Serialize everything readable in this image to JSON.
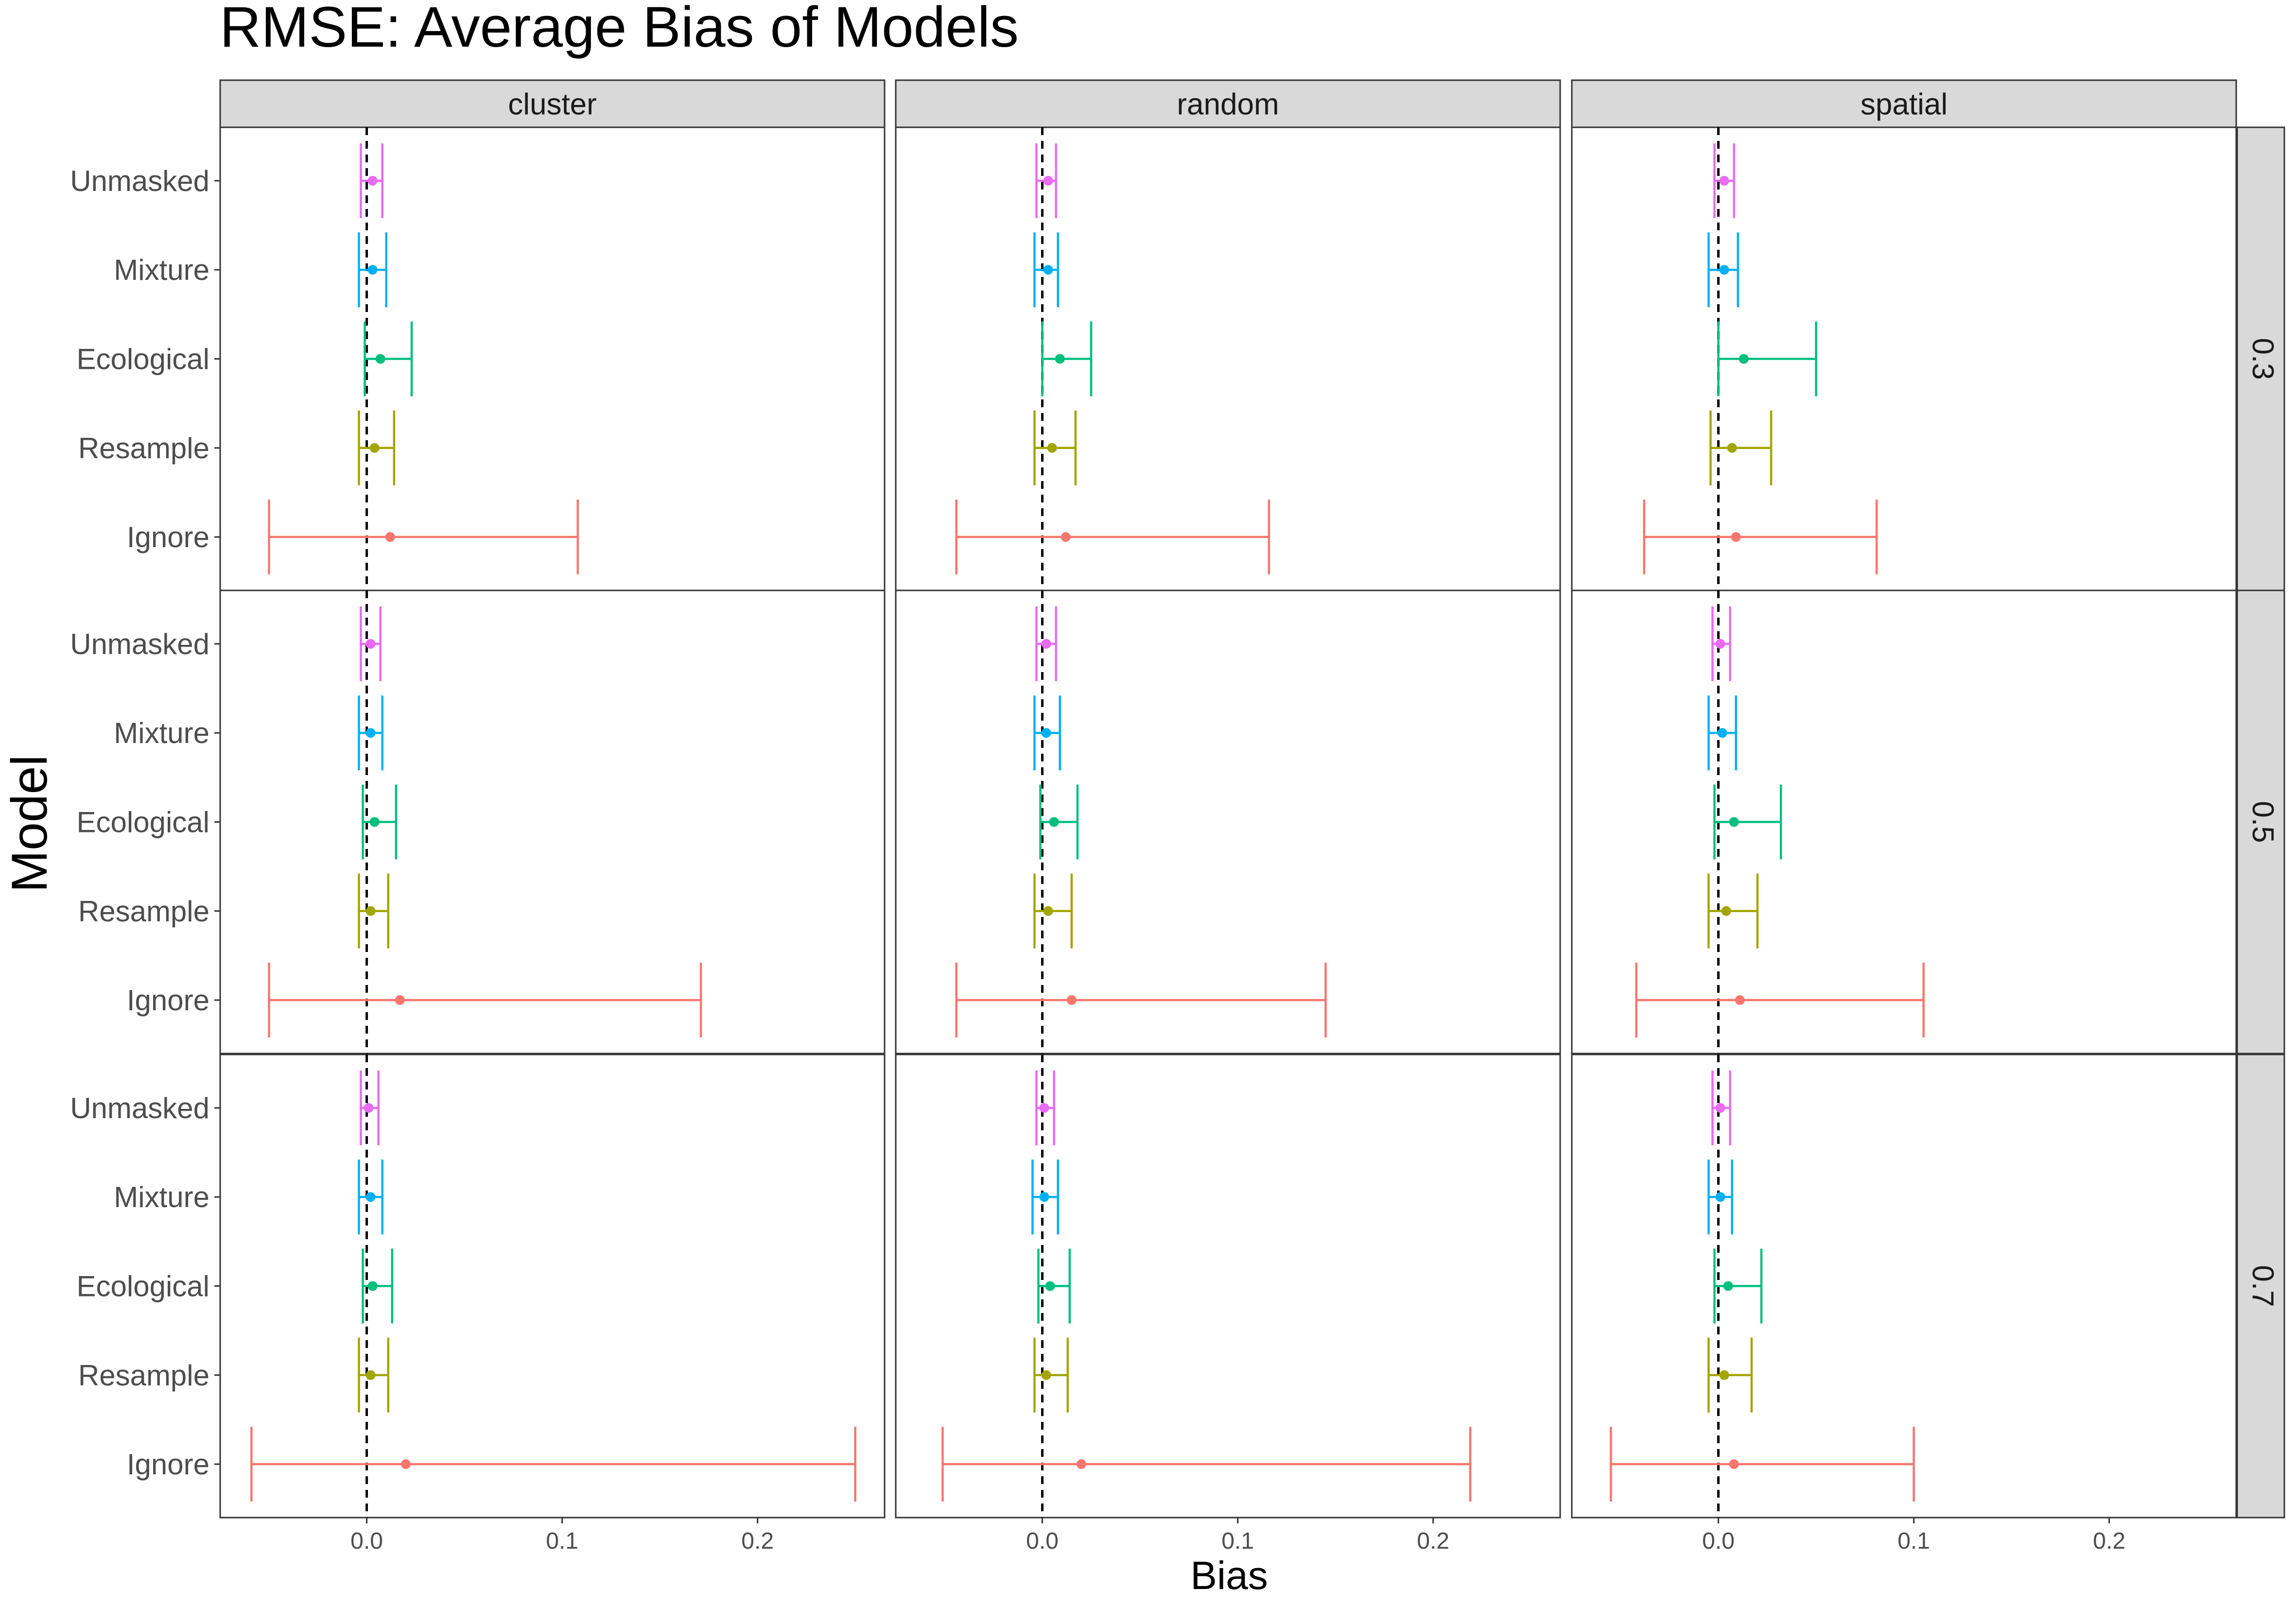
{
  "chart_data": {
    "type": "errorbar",
    "title": "RMSE: Average Bias of Models",
    "xlabel": "Bias",
    "ylabel": "Model",
    "xlim": [
      -0.075,
      0.265
    ],
    "x_ticks": [
      {
        "value": 0.0,
        "label": "0.0"
      },
      {
        "value": 0.1,
        "label": "0.1"
      },
      {
        "value": 0.2,
        "label": "0.2"
      }
    ],
    "reference_line": 0.0,
    "models": [
      "Unmasked",
      "Mixture",
      "Ecological",
      "Resample",
      "Ignore"
    ],
    "model_colors": {
      "Unmasked": "#E76BF3",
      "Mixture": "#00B0F6",
      "Ecological": "#00BF7D",
      "Resample": "#A3A500",
      "Ignore": "#F8766D"
    },
    "col_facets": [
      "cluster",
      "random",
      "spatial"
    ],
    "row_facets": [
      "0.3",
      "0.5",
      "0.7"
    ],
    "panels": [
      {
        "col": "cluster",
        "row": "0.3",
        "points": {
          "Unmasked": {
            "mean": 0.003,
            "low": -0.003,
            "high": 0.008
          },
          "Mixture": {
            "mean": 0.003,
            "low": -0.004,
            "high": 0.01
          },
          "Ecological": {
            "mean": 0.007,
            "low": -0.001,
            "high": 0.023
          },
          "Resample": {
            "mean": 0.004,
            "low": -0.004,
            "high": 0.014
          },
          "Ignore": {
            "mean": 0.012,
            "low": -0.05,
            "high": 0.108
          }
        }
      },
      {
        "col": "random",
        "row": "0.3",
        "points": {
          "Unmasked": {
            "mean": 0.003,
            "low": -0.003,
            "high": 0.007
          },
          "Mixture": {
            "mean": 0.003,
            "low": -0.004,
            "high": 0.008
          },
          "Ecological": {
            "mean": 0.009,
            "low": 0.0,
            "high": 0.025
          },
          "Resample": {
            "mean": 0.005,
            "low": -0.004,
            "high": 0.017
          },
          "Ignore": {
            "mean": 0.012,
            "low": -0.044,
            "high": 0.116
          }
        }
      },
      {
        "col": "spatial",
        "row": "0.3",
        "points": {
          "Unmasked": {
            "mean": 0.003,
            "low": -0.002,
            "high": 0.008
          },
          "Mixture": {
            "mean": 0.003,
            "low": -0.005,
            "high": 0.01
          },
          "Ecological": {
            "mean": 0.013,
            "low": 0.0,
            "high": 0.05
          },
          "Resample": {
            "mean": 0.007,
            "low": -0.004,
            "high": 0.027
          },
          "Ignore": {
            "mean": 0.009,
            "low": -0.038,
            "high": 0.081
          }
        }
      },
      {
        "col": "cluster",
        "row": "0.5",
        "points": {
          "Unmasked": {
            "mean": 0.002,
            "low": -0.003,
            "high": 0.007
          },
          "Mixture": {
            "mean": 0.002,
            "low": -0.004,
            "high": 0.008
          },
          "Ecological": {
            "mean": 0.004,
            "low": -0.002,
            "high": 0.015
          },
          "Resample": {
            "mean": 0.002,
            "low": -0.004,
            "high": 0.011
          },
          "Ignore": {
            "mean": 0.017,
            "low": -0.05,
            "high": 0.171
          }
        }
      },
      {
        "col": "random",
        "row": "0.5",
        "points": {
          "Unmasked": {
            "mean": 0.002,
            "low": -0.003,
            "high": 0.007
          },
          "Mixture": {
            "mean": 0.002,
            "low": -0.004,
            "high": 0.009
          },
          "Ecological": {
            "mean": 0.006,
            "low": -0.001,
            "high": 0.018
          },
          "Resample": {
            "mean": 0.003,
            "low": -0.004,
            "high": 0.015
          },
          "Ignore": {
            "mean": 0.015,
            "low": -0.044,
            "high": 0.145
          }
        }
      },
      {
        "col": "spatial",
        "row": "0.5",
        "points": {
          "Unmasked": {
            "mean": 0.001,
            "low": -0.003,
            "high": 0.006
          },
          "Mixture": {
            "mean": 0.002,
            "low": -0.005,
            "high": 0.009
          },
          "Ecological": {
            "mean": 0.008,
            "low": -0.002,
            "high": 0.032
          },
          "Resample": {
            "mean": 0.004,
            "low": -0.005,
            "high": 0.02
          },
          "Ignore": {
            "mean": 0.011,
            "low": -0.042,
            "high": 0.105
          }
        }
      },
      {
        "col": "cluster",
        "row": "0.7",
        "points": {
          "Unmasked": {
            "mean": 0.001,
            "low": -0.003,
            "high": 0.006
          },
          "Mixture": {
            "mean": 0.002,
            "low": -0.004,
            "high": 0.008
          },
          "Ecological": {
            "mean": 0.003,
            "low": -0.002,
            "high": 0.013
          },
          "Resample": {
            "mean": 0.002,
            "low": -0.004,
            "high": 0.011
          },
          "Ignore": {
            "mean": 0.02,
            "low": -0.059,
            "high": 0.25
          }
        }
      },
      {
        "col": "random",
        "row": "0.7",
        "points": {
          "Unmasked": {
            "mean": 0.001,
            "low": -0.003,
            "high": 0.006
          },
          "Mixture": {
            "mean": 0.001,
            "low": -0.005,
            "high": 0.008
          },
          "Ecological": {
            "mean": 0.004,
            "low": -0.002,
            "high": 0.014
          },
          "Resample": {
            "mean": 0.002,
            "low": -0.004,
            "high": 0.013
          },
          "Ignore": {
            "mean": 0.02,
            "low": -0.051,
            "high": 0.219
          }
        }
      },
      {
        "col": "spatial",
        "row": "0.7",
        "points": {
          "Unmasked": {
            "mean": 0.001,
            "low": -0.003,
            "high": 0.006
          },
          "Mixture": {
            "mean": 0.001,
            "low": -0.005,
            "high": 0.007
          },
          "Ecological": {
            "mean": 0.005,
            "low": -0.002,
            "high": 0.022
          },
          "Resample": {
            "mean": 0.003,
            "low": -0.005,
            "high": 0.017
          },
          "Ignore": {
            "mean": 0.008,
            "low": -0.055,
            "high": 0.1
          }
        }
      }
    ]
  }
}
